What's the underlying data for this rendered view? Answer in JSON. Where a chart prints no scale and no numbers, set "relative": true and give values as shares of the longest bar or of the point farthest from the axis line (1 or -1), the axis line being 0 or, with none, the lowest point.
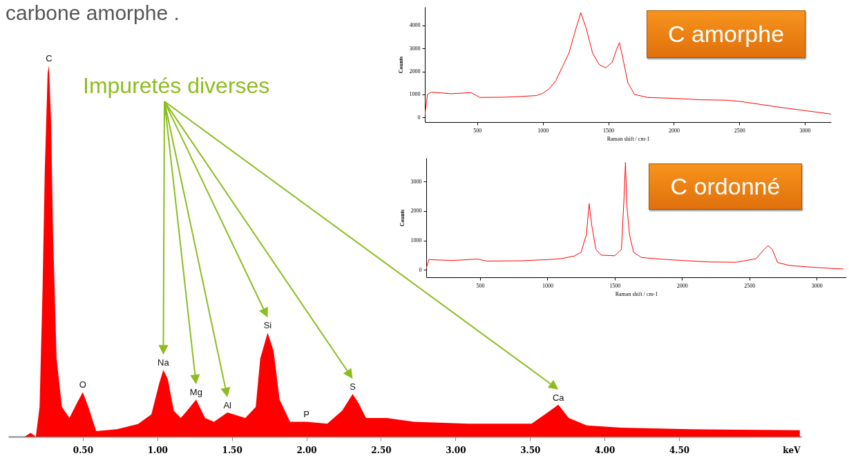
{
  "chart_data": [
    {
      "type": "area",
      "relative": true,
      "color": "#ff0000",
      "xlabel": "keV",
      "xlim": [
        0,
        5.32
      ],
      "xticks": [
        {
          "value": 0.5,
          "label": "0.50"
        },
        {
          "value": 1,
          "label": "1.00"
        },
        {
          "value": 1.5,
          "label": "1.50"
        },
        {
          "value": 2,
          "label": "2.00"
        },
        {
          "value": 2.5,
          "label": "2.50"
        },
        {
          "value": 3,
          "label": "3.00"
        },
        {
          "value": 3.5,
          "label": "3.50"
        },
        {
          "value": 4,
          "label": "4.00"
        },
        {
          "value": 4.5,
          "label": "4.50"
        }
      ],
      "x": [
        0.11,
        0.15,
        0.185,
        0.21,
        0.23,
        0.245,
        0.264,
        0.273,
        0.287,
        0.3,
        0.324,
        0.36,
        0.41,
        0.46,
        0.5,
        0.537,
        0.59,
        0.73,
        0.87,
        0.96,
        1.01,
        1.04,
        1.07,
        1.11,
        1.157,
        1.2,
        1.26,
        1.32,
        1.38,
        1.47,
        1.59,
        1.66,
        1.69,
        1.74,
        1.78,
        1.82,
        1.89,
        2.0,
        2.14,
        2.24,
        2.31,
        2.35,
        2.4,
        2.54,
        2.72,
        3.09,
        3.51,
        3.6,
        3.69,
        3.76,
        3.88,
        4.11,
        4.57,
        5.31
      ],
      "values": [
        0,
        0.01,
        0,
        0.08,
        0.4,
        0.72,
        0.98,
        1,
        0.85,
        0.55,
        0.21,
        0.08,
        0.05,
        0.09,
        0.12,
        0.08,
        0.015,
        0.02,
        0.034,
        0.06,
        0.14,
        0.18,
        0.155,
        0.07,
        0.05,
        0.07,
        0.1,
        0.05,
        0.04,
        0.065,
        0.05,
        0.08,
        0.21,
        0.28,
        0.23,
        0.1,
        0.04,
        0.04,
        0.035,
        0.07,
        0.115,
        0.09,
        0.05,
        0.05,
        0.04,
        0.035,
        0.035,
        0.06,
        0.086,
        0.05,
        0.03,
        0.024,
        0.02,
        0.017
      ],
      "annotations": [
        "carbone amorphe .",
        "Impuretés diverses",
        {
          "text": "C",
          "x": 0.273,
          "y": 1
        },
        {
          "text": "O",
          "x": 0.5,
          "y": 0.12
        },
        {
          "text": "Na",
          "x": 1.04,
          "y": 0.18
        },
        {
          "text": "Mg",
          "x": 1.26,
          "y": 0.1
        },
        {
          "text": "Al",
          "x": 1.47,
          "y": 0.065
        },
        {
          "text": "Si",
          "x": 1.74,
          "y": 0.28
        },
        {
          "text": "P",
          "x": 2.0,
          "y": 0.04
        },
        {
          "text": "S",
          "x": 2.31,
          "y": 0.115
        },
        {
          "text": "Ca",
          "x": 3.69,
          "y": 0.086
        }
      ]
    },
    {
      "type": "line",
      "title": "C amorphe",
      "color": "#ff0000",
      "xlabel": "Raman shift / cm-1",
      "ylabel": "Counts",
      "xlim": [
        100,
        3200
      ],
      "ylim": [
        -200,
        4800
      ],
      "xticks": [
        500,
        1000,
        1500,
        2000,
        2500,
        3000
      ],
      "yticks": [
        0,
        1000,
        2000,
        3000,
        4000
      ],
      "x": [
        100,
        120,
        150,
        300,
        450,
        480,
        520,
        700,
        800,
        950,
        1000,
        1050,
        1100,
        1150,
        1200,
        1250,
        1290,
        1330,
        1380,
        1430,
        1480,
        1530,
        1560,
        1585,
        1610,
        1650,
        1700,
        1800,
        2000,
        2200,
        2400,
        2500,
        2600,
        2800,
        3000,
        3200
      ],
      "values": [
        100,
        1000,
        1100,
        1030,
        1080,
        1000,
        870,
        880,
        900,
        950,
        1050,
        1250,
        1600,
        2200,
        2800,
        3800,
        4550,
        3900,
        2800,
        2300,
        2150,
        2400,
        2900,
        3250,
        2600,
        1500,
        1000,
        870,
        830,
        770,
        750,
        700,
        620,
        450,
        300,
        150
      ]
    },
    {
      "type": "line",
      "title": "C ordonné",
      "color": "#ff0000",
      "xlabel": "Raman shift / cm-1",
      "ylabel": "Counts",
      "xlim": [
        100,
        3220
      ],
      "ylim": [
        -250,
        3800
      ],
      "xticks": [
        500,
        1000,
        1500,
        2000,
        2500,
        3000
      ],
      "yticks": [
        0,
        1000,
        2000,
        3000
      ],
      "x": [
        100,
        120,
        300,
        480,
        550,
        800,
        1000,
        1100,
        1200,
        1250,
        1290,
        1310,
        1330,
        1360,
        1400,
        1500,
        1550,
        1570,
        1580,
        1590,
        1610,
        1640,
        1700,
        1800,
        2000,
        2200,
        2400,
        2550,
        2610,
        2640,
        2670,
        2710,
        2800,
        3000,
        3200
      ],
      "values": [
        50,
        350,
        320,
        370,
        300,
        310,
        350,
        380,
        470,
        600,
        1200,
        2250,
        1500,
        700,
        500,
        480,
        700,
        2500,
        3650,
        2200,
        1200,
        600,
        420,
        380,
        320,
        270,
        260,
        380,
        700,
        820,
        700,
        250,
        150,
        80,
        30
      ]
    }
  ]
}
